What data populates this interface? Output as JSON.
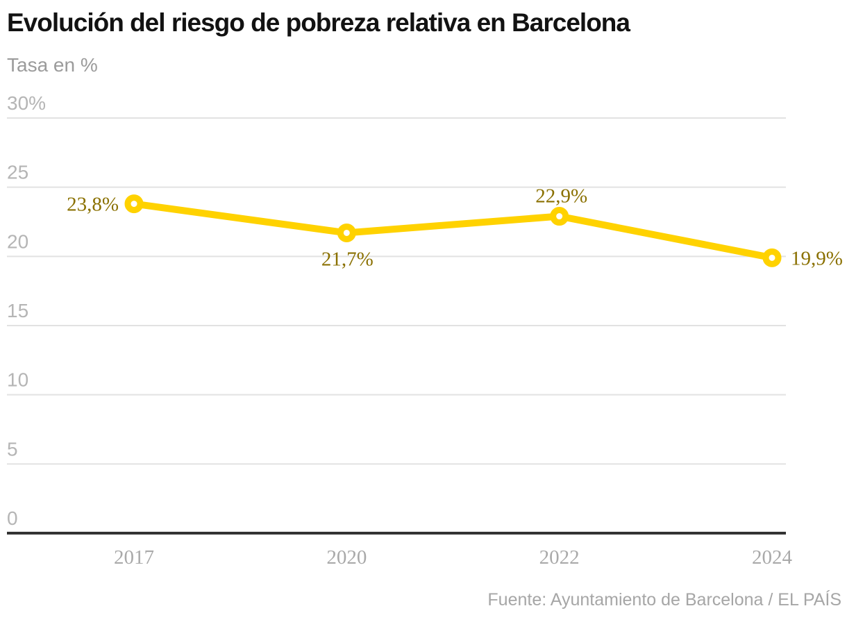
{
  "header": {
    "title": "Evolución del riesgo de pobreza relativa en Barcelona",
    "subtitle": "Tasa en %"
  },
  "footer": {
    "source": "Fuente: Ayuntamiento de Barcelona / EL PAÍS"
  },
  "chart_data": {
    "type": "line",
    "title": "Evolución del riesgo de pobreza relativa en Barcelona",
    "ylabel": "Tasa en %",
    "categories": [
      "2017",
      "2020",
      "2022",
      "2024"
    ],
    "values": [
      23.8,
      21.7,
      22.9,
      19.9
    ],
    "point_labels": [
      "23,8%",
      "21,7%",
      "22,9%",
      "19,9%"
    ],
    "label_positions": [
      "left",
      "below",
      "above",
      "right"
    ],
    "ylim": [
      0,
      30
    ],
    "yticks": [
      0,
      5,
      10,
      15,
      20,
      25,
      30
    ],
    "ytick_labels": [
      "0",
      "5",
      "10",
      "15",
      "20",
      "25",
      "30%"
    ],
    "grid": true,
    "legend": "none",
    "line_color": "#FFD200",
    "marker_fill": "#ffffff",
    "data_label_color": "#8a7000",
    "grid_color": "#e2e2e2",
    "baseline_color": "#333333"
  }
}
